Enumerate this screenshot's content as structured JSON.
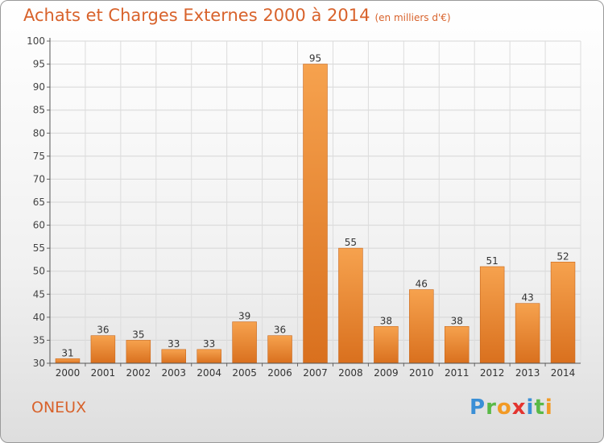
{
  "chart_data": {
    "type": "bar",
    "title": "Achats et Charges Externes 2000 à 2014",
    "subtitle": "(en milliers d'€)",
    "categories": [
      "2000",
      "2001",
      "2002",
      "2003",
      "2004",
      "2005",
      "2006",
      "2007",
      "2008",
      "2009",
      "2010",
      "2011",
      "2012",
      "2013",
      "2014"
    ],
    "values": [
      31,
      36,
      35,
      33,
      33,
      39,
      36,
      95,
      55,
      38,
      46,
      38,
      51,
      43,
      52
    ],
    "ylim": [
      30,
      100
    ],
    "yticks": [
      30,
      35,
      40,
      45,
      50,
      55,
      60,
      65,
      70,
      75,
      80,
      85,
      90,
      95,
      100
    ],
    "grid": true,
    "bar_color": "#e8822f",
    "xlabel": "",
    "ylabel": ""
  },
  "location": "ONEUX",
  "logo_text": "Proxiti"
}
